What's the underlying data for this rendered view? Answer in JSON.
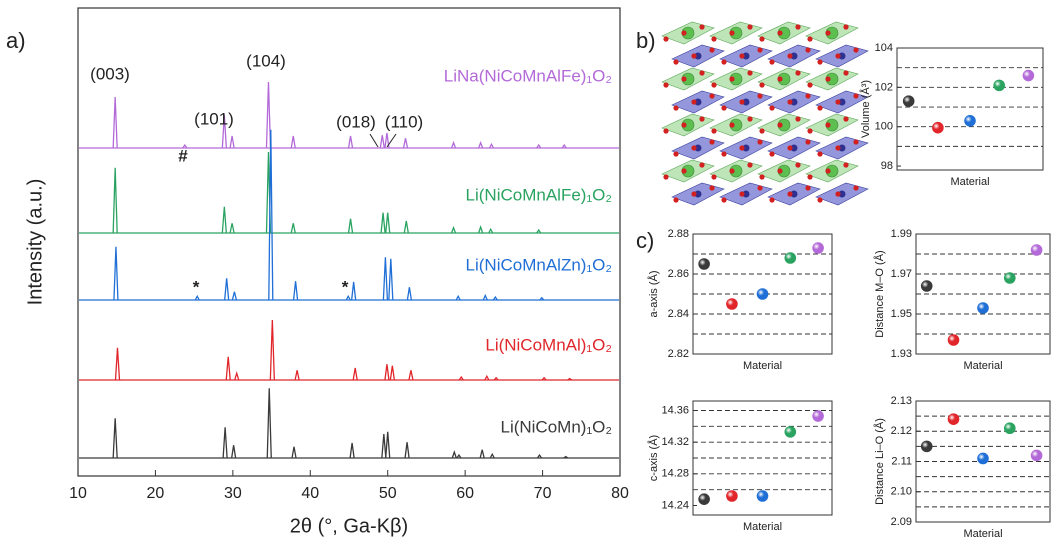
{
  "panel_labels": [
    "a)",
    "b)",
    "c)"
  ],
  "chart_data": [
    {
      "type": "spectrum",
      "xlabel": "2θ (°, Ga-Kβ)",
      "ylabel": "Intensity (a.u.)",
      "xlim": [
        10,
        80
      ],
      "xticks": [
        10,
        20,
        30,
        40,
        50,
        60,
        70,
        80
      ],
      "annotations": [
        "(003)",
        "(101)",
        "(104)",
        "(018)",
        "(110)",
        "#",
        "*",
        "*"
      ],
      "series": [
        {
          "name": "LiNa(NiCoMnAlFe)₁O₂",
          "color": "#b36ad8",
          "x": [
            14.8,
            23.8,
            28.9,
            29.9,
            34.6,
            37.8,
            45.2,
            49.3,
            49.9,
            52.3,
            58.5,
            62.0,
            63.4,
            69.5,
            72.8
          ],
          "values": [
            68,
            4,
            44,
            16,
            88,
            16,
            16,
            17,
            20,
            13,
            7,
            7,
            5,
            4,
            4
          ]
        },
        {
          "name": "Li(NiCoMnAlFe)₁O₂",
          "color": "#2aa361",
          "x": [
            14.8,
            28.9,
            29.9,
            34.6,
            37.8,
            45.2,
            49.4,
            50.0,
            52.4,
            58.5,
            62.0,
            63.3,
            69.5
          ],
          "values": [
            87,
            35,
            13,
            108,
            13,
            19,
            27,
            27,
            16,
            7,
            8,
            5,
            4
          ]
        },
        {
          "name": "Li(NiCoMnAlZn)₁O₂",
          "color": "#1f6fd6",
          "x": [
            14.9,
            25.4,
            29.2,
            30.2,
            34.9,
            38.1,
            44.9,
            45.6,
            49.7,
            50.4,
            52.8,
            59.1,
            62.6,
            63.9,
            69.9
          ],
          "values": [
            71,
            5,
            29,
            11,
            227,
            25,
            5,
            24,
            57,
            55,
            17,
            5,
            6,
            4,
            3
          ]
        },
        {
          "name": "Li(NiCoMnAl)₁O₂",
          "color": "#e0262b",
          "x": [
            15.1,
            29.4,
            30.5,
            35.1,
            38.3,
            45.8,
            49.9,
            50.6,
            53.0,
            59.5,
            62.8,
            64.0,
            70.2,
            73.5
          ],
          "values": [
            43,
            31,
            9,
            80,
            13,
            16,
            21,
            19,
            13,
            4,
            5,
            3,
            3,
            2
          ]
        },
        {
          "name": "Li(NiCoMn)₁O₂",
          "color": "#3a3a3a",
          "x": [
            14.8,
            29.0,
            30.1,
            34.7,
            37.9,
            45.4,
            49.5,
            50.0,
            52.5,
            58.6,
            59.2,
            62.2,
            63.5,
            69.6,
            73.0
          ],
          "values": [
            53,
            41,
            17,
            93,
            15,
            20,
            32,
            35,
            21,
            8,
            4,
            11,
            5,
            4,
            2
          ]
        }
      ]
    },
    {
      "type": "scatter",
      "ylabel": "Volume (Å³)",
      "xlabel": "Material",
      "ylim": [
        97.8,
        104
      ],
      "yticks": [
        98,
        100,
        102,
        104
      ],
      "gridlines": [
        99,
        100,
        101,
        102,
        103
      ],
      "values": [
        101.3,
        99.95,
        100.3,
        102.1,
        102.6
      ],
      "colors": [
        "#3a3a3a",
        "#e0262b",
        "#1f6fd6",
        "#2aa361",
        "#b36ad8"
      ]
    },
    {
      "type": "scatter",
      "ylabel": "a-axis (Å)",
      "xlabel": "Material",
      "ylim": [
        2.82,
        2.88
      ],
      "yticks": [
        2.82,
        2.84,
        2.86,
        2.88
      ],
      "gridlines": [
        2.83,
        2.84,
        2.85,
        2.86,
        2.87
      ],
      "values": [
        2.865,
        2.845,
        2.85,
        2.868,
        2.873
      ],
      "colors": [
        "#3a3a3a",
        "#e0262b",
        "#1f6fd6",
        "#2aa361",
        "#b36ad8"
      ]
    },
    {
      "type": "scatter",
      "ylabel": "Distance M–O (Å)",
      "xlabel": "Material",
      "ylim": [
        1.93,
        1.99
      ],
      "yticks": [
        1.93,
        1.95,
        1.97,
        1.99
      ],
      "gridlines": [
        1.94,
        1.95,
        1.96,
        1.97,
        1.98
      ],
      "values": [
        1.964,
        1.937,
        1.953,
        1.968,
        1.982
      ],
      "colors": [
        "#3a3a3a",
        "#e0262b",
        "#1f6fd6",
        "#2aa361",
        "#b36ad8"
      ]
    },
    {
      "type": "scatter",
      "ylabel": "c-axis (Å)",
      "xlabel": "Material",
      "ylim": [
        14.228,
        14.372
      ],
      "yticks": [
        14.24,
        14.28,
        14.32,
        14.36
      ],
      "gridlines": [
        14.26,
        14.28,
        14.3,
        14.32,
        14.34,
        14.36
      ],
      "values": [
        14.248,
        14.252,
        14.252,
        14.333,
        14.353
      ],
      "colors": [
        "#3a3a3a",
        "#e0262b",
        "#1f6fd6",
        "#2aa361",
        "#b36ad8"
      ]
    },
    {
      "type": "scatter",
      "ylabel": "Distance Li–O (Å)",
      "xlabel": "Material",
      "ylim": [
        2.09,
        2.13
      ],
      "yticks": [
        2.09,
        {
          "value": 2.1,
          "label": "2.10"
        },
        2.11,
        2.12,
        2.13
      ],
      "gridlines": [
        2.095,
        2.1,
        2.105,
        2.11,
        2.115,
        2.12,
        2.125
      ],
      "values": [
        2.115,
        2.124,
        2.111,
        2.121,
        2.112
      ],
      "colors": [
        "#3a3a3a",
        "#e0262b",
        "#1f6fd6",
        "#2aa361",
        "#b36ad8"
      ]
    }
  ]
}
